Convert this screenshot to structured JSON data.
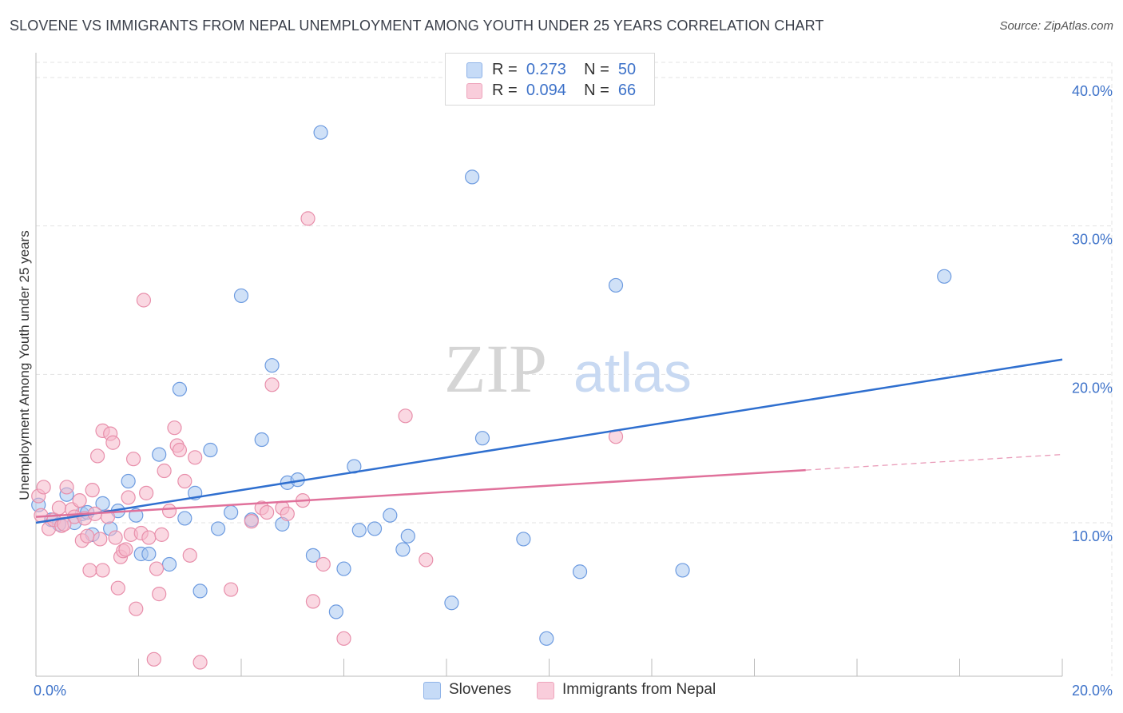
{
  "title": "SLOVENE VS IMMIGRANTS FROM NEPAL UNEMPLOYMENT AMONG YOUTH UNDER 25 YEARS CORRELATION CHART",
  "source": "Source: ZipAtlas.com",
  "watermark": {
    "zip": "ZIP",
    "atlas": "atlas"
  },
  "legend": {
    "rows": [
      {
        "r_label": "R =",
        "r_value": "0.273",
        "n_label": "N =",
        "n_value": "50"
      },
      {
        "r_label": "R =",
        "r_value": "0.094",
        "n_label": "N =",
        "n_value": "66"
      }
    ]
  },
  "bottom_legend": [
    "Slovenes",
    "Immigrants from Nepal"
  ],
  "colors": {
    "slovenes_fill": "#aac8f0",
    "slovenes_stroke": "#6d9be0",
    "slovenes_line": "#2f6fcf",
    "nepal_fill": "#f6b8cb",
    "nepal_stroke": "#e88fab",
    "nepal_line": "#e0719b",
    "tick_text": "#3d72c9",
    "grid": "#e3e3e3"
  },
  "chart_data": {
    "type": "scatter",
    "title": "SLOVENE VS IMMIGRANTS FROM NEPAL UNEMPLOYMENT AMONG YOUTH UNDER 25 YEARS CORRELATION CHART",
    "xlabel": "",
    "ylabel": "Unemployment Among Youth under 25 years",
    "xlim": [
      0,
      20
    ],
    "ylim": [
      0,
      40
    ],
    "x_tick_labels": [
      "0.0%",
      "20.0%"
    ],
    "y_ticks": [
      10,
      20,
      30,
      40
    ],
    "y_tick_labels": [
      "10.0%",
      "20.0%",
      "30.0%",
      "40.0%"
    ],
    "grid": true,
    "legend_position": "top-center",
    "series": [
      {
        "name": "Slovenes",
        "r": 0.273,
        "n": 50,
        "trend": {
          "x0": 0,
          "y0": 10.0,
          "x1": 20,
          "y1": 21.0,
          "solid_to": 20
        },
        "points": [
          [
            0.05,
            11.2
          ],
          [
            0.3,
            10.2
          ],
          [
            0.45,
            9.9
          ],
          [
            0.6,
            11.9
          ],
          [
            0.75,
            10.0
          ],
          [
            0.9,
            10.6
          ],
          [
            1.1,
            9.2
          ],
          [
            1.3,
            11.3
          ],
          [
            1.45,
            9.6
          ],
          [
            1.6,
            10.8
          ],
          [
            1.8,
            12.8
          ],
          [
            1.95,
            10.5
          ],
          [
            2.05,
            7.9
          ],
          [
            2.2,
            7.9
          ],
          [
            2.4,
            14.6
          ],
          [
            2.6,
            7.2
          ],
          [
            2.8,
            19.0
          ],
          [
            2.9,
            10.3
          ],
          [
            3.1,
            12.0
          ],
          [
            3.2,
            5.4
          ],
          [
            3.4,
            14.9
          ],
          [
            3.55,
            9.6
          ],
          [
            3.8,
            10.7
          ],
          [
            4.0,
            25.3
          ],
          [
            4.2,
            10.2
          ],
          [
            4.4,
            15.6
          ],
          [
            4.6,
            20.6
          ],
          [
            4.8,
            9.9
          ],
          [
            4.9,
            12.7
          ],
          [
            5.1,
            12.9
          ],
          [
            5.4,
            7.8
          ],
          [
            5.55,
            36.3
          ],
          [
            5.85,
            4.0
          ],
          [
            6.0,
            6.9
          ],
          [
            6.2,
            13.8
          ],
          [
            6.3,
            9.5
          ],
          [
            6.6,
            9.6
          ],
          [
            6.9,
            10.5
          ],
          [
            7.15,
            8.2
          ],
          [
            7.25,
            9.1
          ],
          [
            8.1,
            4.6
          ],
          [
            8.5,
            33.3
          ],
          [
            8.7,
            15.7
          ],
          [
            9.5,
            8.9
          ],
          [
            9.95,
            2.2
          ],
          [
            10.6,
            6.7
          ],
          [
            11.3,
            26.0
          ],
          [
            12.6,
            6.8
          ],
          [
            17.7,
            26.6
          ],
          [
            1.0,
            10.7
          ]
        ]
      },
      {
        "name": "Immigrants from Nepal",
        "r": 0.094,
        "n": 66,
        "trend": {
          "x0": 0,
          "y0": 10.4,
          "x1": 20,
          "y1": 14.6,
          "solid_to": 15
        },
        "points": [
          [
            0.05,
            11.8
          ],
          [
            0.1,
            10.5
          ],
          [
            0.15,
            12.4
          ],
          [
            0.25,
            9.6
          ],
          [
            0.35,
            10.2
          ],
          [
            0.45,
            11.0
          ],
          [
            0.5,
            9.8
          ],
          [
            0.6,
            12.4
          ],
          [
            0.7,
            10.9
          ],
          [
            0.75,
            10.4
          ],
          [
            0.85,
            11.5
          ],
          [
            0.9,
            8.8
          ],
          [
            0.95,
            10.3
          ],
          [
            1.0,
            9.1
          ],
          [
            1.05,
            6.8
          ],
          [
            1.1,
            12.2
          ],
          [
            1.2,
            14.5
          ],
          [
            1.3,
            6.8
          ],
          [
            1.3,
            16.2
          ],
          [
            1.4,
            10.4
          ],
          [
            1.45,
            16.0
          ],
          [
            1.5,
            15.4
          ],
          [
            1.55,
            9.0
          ],
          [
            1.6,
            5.6
          ],
          [
            1.65,
            7.7
          ],
          [
            1.7,
            8.1
          ],
          [
            1.75,
            8.2
          ],
          [
            1.8,
            11.7
          ],
          [
            1.85,
            9.2
          ],
          [
            1.9,
            14.3
          ],
          [
            1.95,
            4.2
          ],
          [
            2.05,
            9.3
          ],
          [
            2.1,
            25.0
          ],
          [
            2.15,
            12.0
          ],
          [
            2.2,
            9.0
          ],
          [
            2.3,
            0.8
          ],
          [
            2.35,
            6.9
          ],
          [
            2.4,
            5.2
          ],
          [
            2.45,
            9.2
          ],
          [
            2.5,
            13.5
          ],
          [
            2.6,
            10.8
          ],
          [
            2.7,
            16.4
          ],
          [
            2.75,
            15.2
          ],
          [
            2.8,
            14.9
          ],
          [
            2.9,
            12.8
          ],
          [
            3.0,
            7.8
          ],
          [
            3.1,
            14.4
          ],
          [
            3.2,
            0.6
          ],
          [
            3.8,
            5.5
          ],
          [
            4.2,
            10.1
          ],
          [
            4.4,
            11.0
          ],
          [
            4.5,
            10.7
          ],
          [
            4.6,
            19.3
          ],
          [
            4.8,
            11.0
          ],
          [
            4.9,
            10.6
          ],
          [
            5.2,
            11.5
          ],
          [
            5.3,
            30.5
          ],
          [
            5.4,
            4.7
          ],
          [
            5.6,
            7.2
          ],
          [
            6.0,
            2.2
          ],
          [
            7.2,
            17.2
          ],
          [
            7.6,
            7.5
          ],
          [
            11.3,
            15.8
          ],
          [
            0.55,
            9.9
          ],
          [
            1.25,
            8.9
          ],
          [
            1.15,
            10.6
          ]
        ]
      }
    ]
  }
}
